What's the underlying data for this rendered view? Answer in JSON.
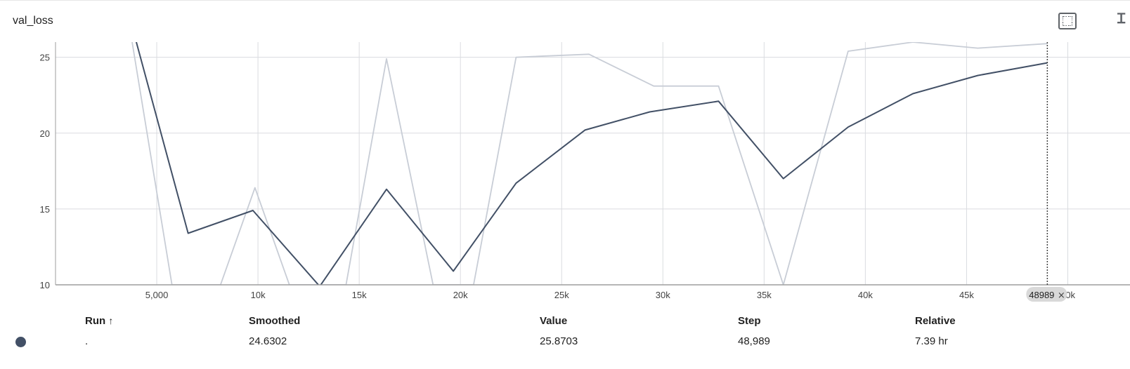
{
  "card": {
    "title": "val_loss",
    "fullscreen_icon": "fullscreen-icon"
  },
  "chart_data": {
    "type": "line",
    "title": "val_loss",
    "xlabel": "",
    "ylabel": "",
    "xlim": [
      0,
      50400
    ],
    "ylim": [
      10,
      26
    ],
    "x_ticks": [
      5000,
      10000,
      15000,
      20000,
      25000,
      30000,
      35000,
      40000,
      45000,
      50000
    ],
    "x_tick_labels": [
      "5,000",
      "10k",
      "15k",
      "20k",
      "25k",
      "30k",
      "35k",
      "40k",
      "45k",
      "50k"
    ],
    "y_ticks": [
      10,
      15,
      20,
      25
    ],
    "y_tick_labels": [
      "10",
      "15",
      "20",
      "25"
    ],
    "grid": true,
    "hover_step": 48989,
    "hover_step_label": "48989",
    "series": [
      {
        "role": "raw",
        "color": "#c8cdd6",
        "x": [
          3600,
          5750,
          8150,
          9850,
          11550,
          14350,
          16350,
          18650,
          20650,
          22750,
          26350,
          29550,
          32750,
          35950,
          39150,
          42350,
          45550,
          48989
        ],
        "y": [
          27.5,
          10,
          10,
          16.4,
          10,
          10,
          24.9,
          10,
          10,
          25.0,
          25.2,
          23.1,
          23.1,
          10,
          25.4,
          26.0,
          25.6,
          25.9
        ]
      },
      {
        "role": "smoothed",
        "color": "#425066",
        "x": [
          3850,
          6550,
          9750,
          13050,
          16350,
          19650,
          22750,
          26150,
          29350,
          32750,
          35950,
          39150,
          42350,
          45550,
          48989
        ],
        "y": [
          26.7,
          13.4,
          14.9,
          9.9,
          16.3,
          10.9,
          16.7,
          20.2,
          21.4,
          22.1,
          17.0,
          20.4,
          22.6,
          23.8,
          24.63
        ]
      }
    ]
  },
  "table": {
    "headers": {
      "run": "Run",
      "sort_arrow": "↑",
      "smoothed": "Smoothed",
      "value": "Value",
      "step": "Step",
      "relative": "Relative"
    },
    "rows": [
      {
        "run_color": "#425066",
        "run": ".",
        "smoothed": "24.6302",
        "value": "25.8703",
        "step": "48,989",
        "relative": "7.39 hr"
      }
    ]
  }
}
